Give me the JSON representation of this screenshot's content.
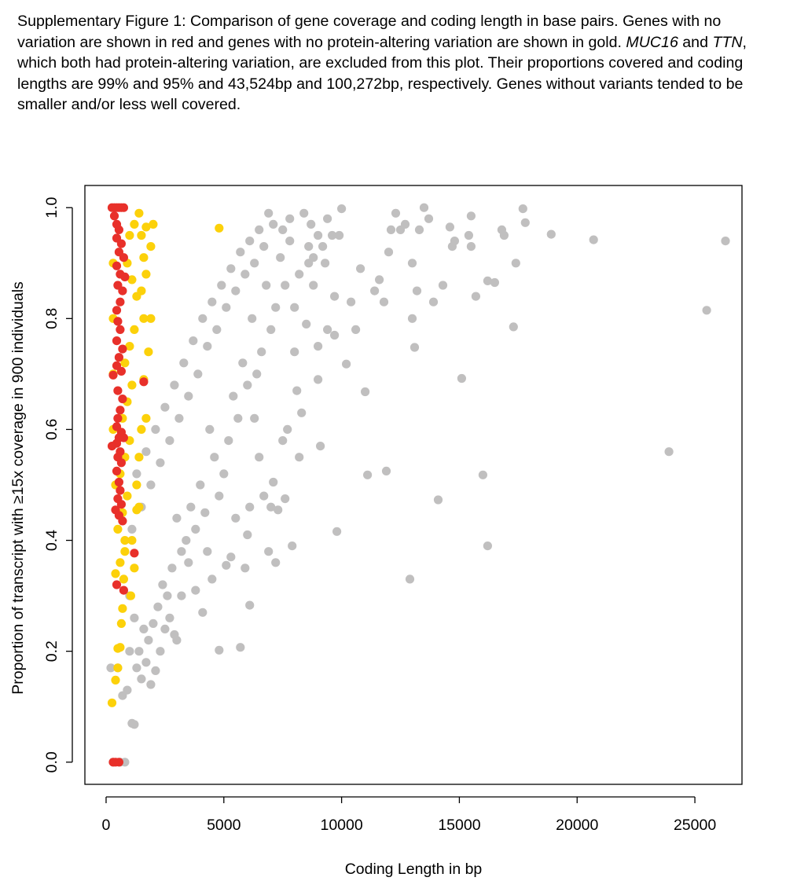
{
  "caption": {
    "p1": "Supplementary Figure 1: Comparison of gene coverage and coding length in base pairs. Genes with no variation are shown in red and genes with no protein-altering variation are shown in gold.  ",
    "gene1": "MUC16",
    "p2": " and ",
    "gene2": "TTN",
    "p3": ", which both had protein-altering variation, are excluded from this plot. Their proportions covered and coding lengths are 99% and 95% and 43,524bp and 100,272bp, respectively. Genes without variants tended to be smaller and/or less well covered."
  },
  "colors": {
    "no_variation": "#e8302a",
    "no_protein_altering": "#fcd10a",
    "other": "#c0bfbf"
  },
  "chart_data": {
    "type": "scatter",
    "xlabel": "Coding Length in bp",
    "ylabel": "Proportion of transcript with ≥15x coverage in 900 individuals",
    "xlim": [
      -900,
      27000
    ],
    "ylim": [
      -0.04,
      1.04
    ],
    "x_ticks": [
      0,
      5000,
      10000,
      15000,
      20000,
      25000
    ],
    "x_tick_labels": [
      "0",
      "5000",
      "10000",
      "15000",
      "20000",
      "25000"
    ],
    "y_ticks": [
      0.0,
      0.2,
      0.4,
      0.6,
      0.8,
      1.0
    ],
    "y_tick_labels": [
      "0.0",
      "0.2",
      "0.4",
      "0.6",
      "0.8",
      "1.0"
    ],
    "grid": false,
    "legend": "none",
    "series": [
      {
        "category": "other",
        "points": [
          [
            26300,
            0.94
          ],
          [
            25500,
            0.815
          ],
          [
            23900,
            0.56
          ],
          [
            20700,
            0.942
          ],
          [
            18900,
            0.952
          ],
          [
            17700,
            0.998
          ],
          [
            17800,
            0.973
          ],
          [
            17400,
            0.9
          ],
          [
            17300,
            0.785
          ],
          [
            16800,
            0.96
          ],
          [
            16900,
            0.95
          ],
          [
            16500,
            0.865
          ],
          [
            16200,
            0.868
          ],
          [
            16200,
            0.39
          ],
          [
            16000,
            0.518
          ],
          [
            15700,
            0.84
          ],
          [
            15500,
            0.985
          ],
          [
            15400,
            0.95
          ],
          [
            15500,
            0.93
          ],
          [
            15100,
            0.692
          ],
          [
            14600,
            0.965
          ],
          [
            14700,
            0.93
          ],
          [
            14800,
            0.94
          ],
          [
            14300,
            0.86
          ],
          [
            14100,
            0.473
          ],
          [
            13900,
            0.83
          ],
          [
            13700,
            0.98
          ],
          [
            13500,
            1.0
          ],
          [
            13300,
            0.96
          ],
          [
            13200,
            0.85
          ],
          [
            13000,
            0.9
          ],
          [
            13100,
            0.748
          ],
          [
            13000,
            0.8
          ],
          [
            12900,
            0.33
          ],
          [
            12700,
            0.97
          ],
          [
            12500,
            0.96
          ],
          [
            12300,
            0.99
          ],
          [
            12100,
            0.96
          ],
          [
            12000,
            0.92
          ],
          [
            11900,
            0.525
          ],
          [
            11800,
            0.83
          ],
          [
            11600,
            0.87
          ],
          [
            11400,
            0.85
          ],
          [
            11100,
            0.518
          ],
          [
            11000,
            0.668
          ],
          [
            10800,
            0.89
          ],
          [
            10600,
            0.78
          ],
          [
            10400,
            0.83
          ],
          [
            10200,
            0.718
          ],
          [
            10000,
            0.998
          ],
          [
            9900,
            0.95
          ],
          [
            9600,
            0.95
          ],
          [
            9700,
            0.84
          ],
          [
            9800,
            0.416
          ],
          [
            9700,
            0.77
          ],
          [
            9400,
            0.78
          ],
          [
            9300,
            0.9
          ],
          [
            9100,
            0.57
          ],
          [
            9000,
            0.75
          ],
          [
            9000,
            0.69
          ],
          [
            8800,
            0.86
          ],
          [
            8600,
            0.9
          ],
          [
            8500,
            0.79
          ],
          [
            8300,
            0.63
          ],
          [
            8200,
            0.55
          ],
          [
            8100,
            0.67
          ],
          [
            8000,
            0.74
          ],
          [
            7900,
            0.39
          ],
          [
            7700,
            0.6
          ],
          [
            7600,
            0.475
          ],
          [
            7500,
            0.58
          ],
          [
            7300,
            0.455
          ],
          [
            7200,
            0.36
          ],
          [
            7100,
            0.505
          ],
          [
            7000,
            0.46
          ],
          [
            6900,
            0.38
          ],
          [
            6700,
            0.48
          ],
          [
            6500,
            0.55
          ],
          [
            6300,
            0.62
          ],
          [
            6100,
            0.46
          ],
          [
            6100,
            0.283
          ],
          [
            6000,
            0.41
          ],
          [
            5900,
            0.35
          ],
          [
            5700,
            0.207
          ],
          [
            5500,
            0.44
          ],
          [
            5300,
            0.37
          ],
          [
            5100,
            0.355
          ],
          [
            4800,
            0.202
          ],
          [
            4500,
            0.33
          ],
          [
            4300,
            0.38
          ],
          [
            4100,
            0.27
          ],
          [
            3800,
            0.31
          ],
          [
            3500,
            0.36
          ],
          [
            3200,
            0.3
          ],
          [
            3000,
            0.22
          ],
          [
            2900,
            0.23
          ],
          [
            2700,
            0.26
          ],
          [
            2500,
            0.24
          ],
          [
            2300,
            0.2
          ],
          [
            2100,
            0.165
          ],
          [
            1900,
            0.14
          ],
          [
            1700,
            0.18
          ],
          [
            1500,
            0.15
          ],
          [
            1300,
            0.17
          ],
          [
            1100,
            0.07
          ],
          [
            1200,
            0.068
          ],
          [
            1000,
            0.2
          ],
          [
            900,
            0.13
          ],
          [
            700,
            0.12
          ],
          [
            500,
            0.17
          ],
          [
            200,
            0.17
          ],
          [
            800,
            0.0
          ],
          [
            600,
            0.0
          ],
          [
            300,
            0.0
          ],
          [
            9000,
            0.95
          ],
          [
            9400,
            0.98
          ],
          [
            9200,
            0.93
          ],
          [
            8700,
            0.97
          ],
          [
            8400,
            0.99
          ],
          [
            8600,
            0.93
          ],
          [
            8800,
            0.91
          ],
          [
            8200,
            0.88
          ],
          [
            7800,
            0.94
          ],
          [
            8000,
            0.82
          ],
          [
            7600,
            0.86
          ],
          [
            7400,
            0.91
          ],
          [
            7200,
            0.82
          ],
          [
            7000,
            0.78
          ],
          [
            6800,
            0.86
          ],
          [
            6600,
            0.74
          ],
          [
            6400,
            0.7
          ],
          [
            6200,
            0.8
          ],
          [
            6000,
            0.68
          ],
          [
            5800,
            0.72
          ],
          [
            5600,
            0.62
          ],
          [
            5400,
            0.66
          ],
          [
            5200,
            0.58
          ],
          [
            5000,
            0.52
          ],
          [
            4800,
            0.48
          ],
          [
            4600,
            0.55
          ],
          [
            4400,
            0.6
          ],
          [
            4200,
            0.45
          ],
          [
            4000,
            0.5
          ],
          [
            3800,
            0.42
          ],
          [
            3600,
            0.46
          ],
          [
            3400,
            0.4
          ],
          [
            3200,
            0.38
          ],
          [
            3000,
            0.44
          ],
          [
            2800,
            0.35
          ],
          [
            2600,
            0.3
          ],
          [
            2400,
            0.32
          ],
          [
            2200,
            0.28
          ],
          [
            2000,
            0.25
          ],
          [
            1800,
            0.22
          ],
          [
            1600,
            0.24
          ],
          [
            1400,
            0.2
          ],
          [
            1200,
            0.26
          ],
          [
            1000,
            0.3
          ],
          [
            7800,
            0.98
          ],
          [
            7500,
            0.96
          ],
          [
            7100,
            0.97
          ],
          [
            6900,
            0.99
          ],
          [
            6700,
            0.93
          ],
          [
            6500,
            0.96
          ],
          [
            6300,
            0.9
          ],
          [
            6100,
            0.94
          ],
          [
            5900,
            0.88
          ],
          [
            5700,
            0.92
          ],
          [
            5500,
            0.85
          ],
          [
            5300,
            0.89
          ],
          [
            5100,
            0.82
          ],
          [
            4900,
            0.86
          ],
          [
            4700,
            0.78
          ],
          [
            4500,
            0.83
          ],
          [
            4300,
            0.75
          ],
          [
            4100,
            0.8
          ],
          [
            3900,
            0.7
          ],
          [
            3700,
            0.76
          ],
          [
            3500,
            0.66
          ],
          [
            3300,
            0.72
          ],
          [
            3100,
            0.62
          ],
          [
            2900,
            0.68
          ],
          [
            2700,
            0.58
          ],
          [
            2500,
            0.64
          ],
          [
            2300,
            0.54
          ],
          [
            2100,
            0.6
          ],
          [
            1900,
            0.5
          ],
          [
            1700,
            0.56
          ],
          [
            1500,
            0.46
          ],
          [
            1300,
            0.52
          ],
          [
            1100,
            0.42
          ]
        ]
      },
      {
        "category": "no_protein_altering",
        "points": [
          [
            4800,
            0.963
          ],
          [
            1900,
            0.8
          ],
          [
            1600,
            0.8
          ],
          [
            1800,
            0.74
          ],
          [
            1600,
            0.69
          ],
          [
            1700,
            0.62
          ],
          [
            1500,
            0.6
          ],
          [
            1400,
            0.55
          ],
          [
            1300,
            0.5
          ],
          [
            1400,
            0.46
          ],
          [
            1300,
            0.455
          ],
          [
            1100,
            0.4
          ],
          [
            1200,
            0.35
          ],
          [
            1050,
            0.3
          ],
          [
            800,
            0.4
          ],
          [
            750,
            0.33
          ],
          [
            700,
            0.277
          ],
          [
            650,
            0.25
          ],
          [
            600,
            0.207
          ],
          [
            500,
            0.205
          ],
          [
            500,
            0.17
          ],
          [
            400,
            0.148
          ],
          [
            250,
            0.107
          ],
          [
            1500,
            0.85
          ],
          [
            1700,
            0.88
          ],
          [
            1900,
            0.93
          ],
          [
            2000,
            0.97
          ],
          [
            1700,
            0.965
          ],
          [
            1400,
            0.99
          ],
          [
            1200,
            0.97
          ],
          [
            1000,
            0.95
          ],
          [
            900,
            0.9
          ],
          [
            1100,
            0.87
          ],
          [
            1300,
            0.84
          ],
          [
            1500,
            0.95
          ],
          [
            1600,
            0.91
          ],
          [
            1200,
            0.78
          ],
          [
            1000,
            0.75
          ],
          [
            800,
            0.72
          ],
          [
            1100,
            0.68
          ],
          [
            900,
            0.65
          ],
          [
            700,
            0.62
          ],
          [
            1000,
            0.58
          ],
          [
            800,
            0.55
          ],
          [
            600,
            0.52
          ],
          [
            900,
            0.48
          ],
          [
            700,
            0.45
          ],
          [
            500,
            0.42
          ],
          [
            800,
            0.38
          ],
          [
            600,
            0.36
          ],
          [
            400,
            0.34
          ],
          [
            300,
            0.6
          ],
          [
            300,
            0.7
          ],
          [
            300,
            0.8
          ],
          [
            300,
            0.9
          ],
          [
            400,
            0.5
          ]
        ]
      },
      {
        "category": "no_variation",
        "points": [
          [
            250,
            1.0
          ],
          [
            350,
            1.0
          ],
          [
            450,
            1.0
          ],
          [
            550,
            1.0
          ],
          [
            650,
            1.0
          ],
          [
            750,
            1.0
          ],
          [
            350,
            0.985
          ],
          [
            450,
            0.97
          ],
          [
            550,
            0.96
          ],
          [
            450,
            0.945
          ],
          [
            650,
            0.935
          ],
          [
            550,
            0.92
          ],
          [
            750,
            0.91
          ],
          [
            450,
            0.895
          ],
          [
            600,
            0.88
          ],
          [
            800,
            0.875
          ],
          [
            500,
            0.86
          ],
          [
            700,
            0.85
          ],
          [
            600,
            0.83
          ],
          [
            450,
            0.815
          ],
          [
            500,
            0.795
          ],
          [
            600,
            0.78
          ],
          [
            450,
            0.76
          ],
          [
            700,
            0.745
          ],
          [
            550,
            0.73
          ],
          [
            450,
            0.715
          ],
          [
            650,
            0.705
          ],
          [
            300,
            0.698
          ],
          [
            1600,
            0.686
          ],
          [
            500,
            0.67
          ],
          [
            700,
            0.655
          ],
          [
            600,
            0.635
          ],
          [
            500,
            0.62
          ],
          [
            450,
            0.605
          ],
          [
            650,
            0.595
          ],
          [
            550,
            0.585
          ],
          [
            750,
            0.585
          ],
          [
            450,
            0.575
          ],
          [
            250,
            0.57
          ],
          [
            600,
            0.56
          ],
          [
            500,
            0.55
          ],
          [
            650,
            0.54
          ],
          [
            450,
            0.525
          ],
          [
            550,
            0.505
          ],
          [
            600,
            0.49
          ],
          [
            500,
            0.475
          ],
          [
            650,
            0.465
          ],
          [
            400,
            0.455
          ],
          [
            550,
            0.445
          ],
          [
            700,
            0.435
          ],
          [
            1200,
            0.377
          ],
          [
            450,
            0.32
          ],
          [
            750,
            0.31
          ],
          [
            300,
            0.0
          ],
          [
            400,
            0.0
          ],
          [
            550,
            0.0
          ]
        ]
      }
    ]
  }
}
